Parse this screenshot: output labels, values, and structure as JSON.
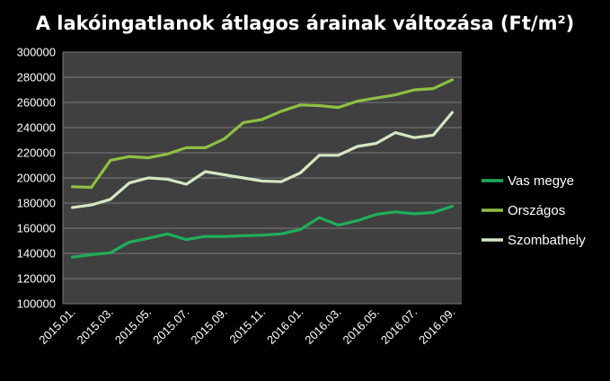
{
  "chart_data": {
    "type": "line",
    "title": "A lakóingatlanok átlagos árainak változása (Ft/m²)",
    "x": [
      "2015.01.",
      "2015.02.",
      "2015.03.",
      "2015.04.",
      "2015.05.",
      "2015.06.",
      "2015.07.",
      "2015.08.",
      "2015.09.",
      "2015.10.",
      "2015.11.",
      "2015.12.",
      "2016.01.",
      "2016.02.",
      "2016.03.",
      "2016.04.",
      "2016.05.",
      "2016.06.",
      "2016.07.",
      "2016.08.",
      "2016.09."
    ],
    "xtick_labels": [
      "2015.01.",
      "2015.03.",
      "2015.05.",
      "2015.07.",
      "2015.09.",
      "2015.11.",
      "2016.01.",
      "2016.03.",
      "2016.05.",
      "2016.07.",
      "2016.09."
    ],
    "ylim": [
      100000,
      300000
    ],
    "yticks": [
      "100000",
      "120000",
      "140000",
      "160000",
      "180000",
      "200000",
      "220000",
      "240000",
      "260000",
      "280000",
      "300000"
    ],
    "grid": true,
    "legend_position": "right",
    "series": [
      {
        "name": "Vas megye",
        "color": "#1fae5a",
        "values": [
          137000,
          139000,
          140500,
          149000,
          152000,
          155500,
          151000,
          153500,
          153500,
          154000,
          154500,
          155500,
          159000,
          168500,
          162500,
          166000,
          171000,
          173000,
          171500,
          172500,
          177500
        ]
      },
      {
        "name": "Országos",
        "color": "#8fbf43",
        "values": [
          193000,
          192500,
          214000,
          217000,
          216000,
          219000,
          224000,
          224000,
          231000,
          244000,
          246500,
          253000,
          258000,
          257500,
          256000,
          261000,
          263500,
          266000,
          270000,
          271000,
          278000
        ]
      },
      {
        "name": "Szombathely",
        "color": "#d4e6c2",
        "values": [
          176500,
          178500,
          183000,
          196000,
          200000,
          199000,
          195000,
          205000,
          202500,
          200000,
          197500,
          197000,
          204000,
          218000,
          218000,
          225000,
          227500,
          236000,
          232000,
          234000,
          252000
        ]
      }
    ]
  }
}
